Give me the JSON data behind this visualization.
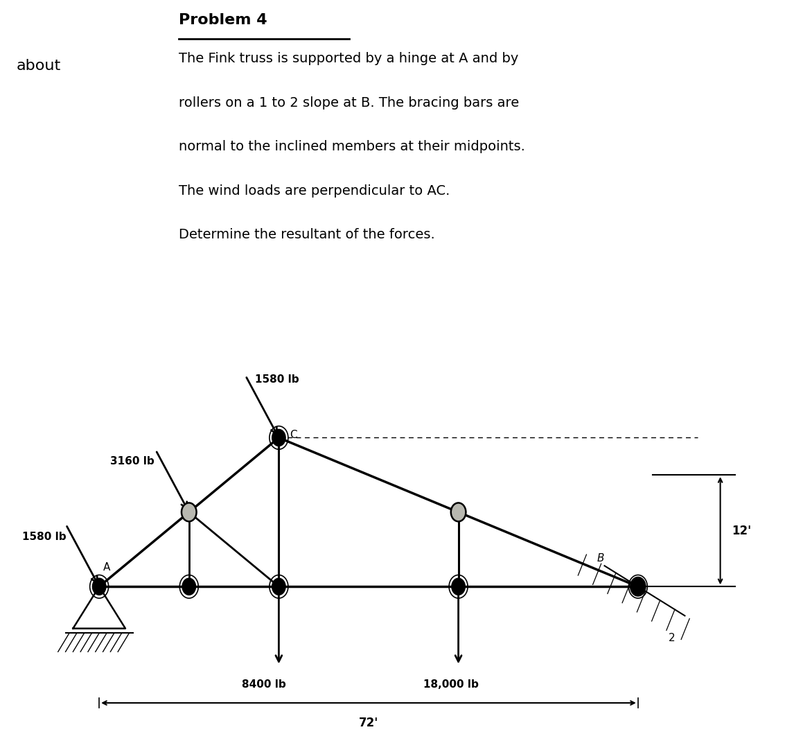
{
  "title": "Problem 4",
  "about_text": "about",
  "description_lines": [
    "The Fink truss is supported by a hinge at A and by",
    "rollers on a 1 to 2 slope at B. The bracing bars are",
    "normal to the inclined members at their midpoints.",
    "The wind loads are perpendicular to AC.",
    "Determine the resultant of the forces."
  ],
  "fig_bg": "#ffffff",
  "truss_bg": "#b8b8b0",
  "label_1580_top": "1580 lb",
  "label_3160": "3160 lb",
  "label_1580_left": "1580 lb",
  "label_8400": "8400 lb",
  "label_18000": "18,000 lb",
  "label_72": "72'",
  "label_12": "12'",
  "label_B": "B",
  "label_C": "C",
  "label_A": "A",
  "label_2": "2"
}
